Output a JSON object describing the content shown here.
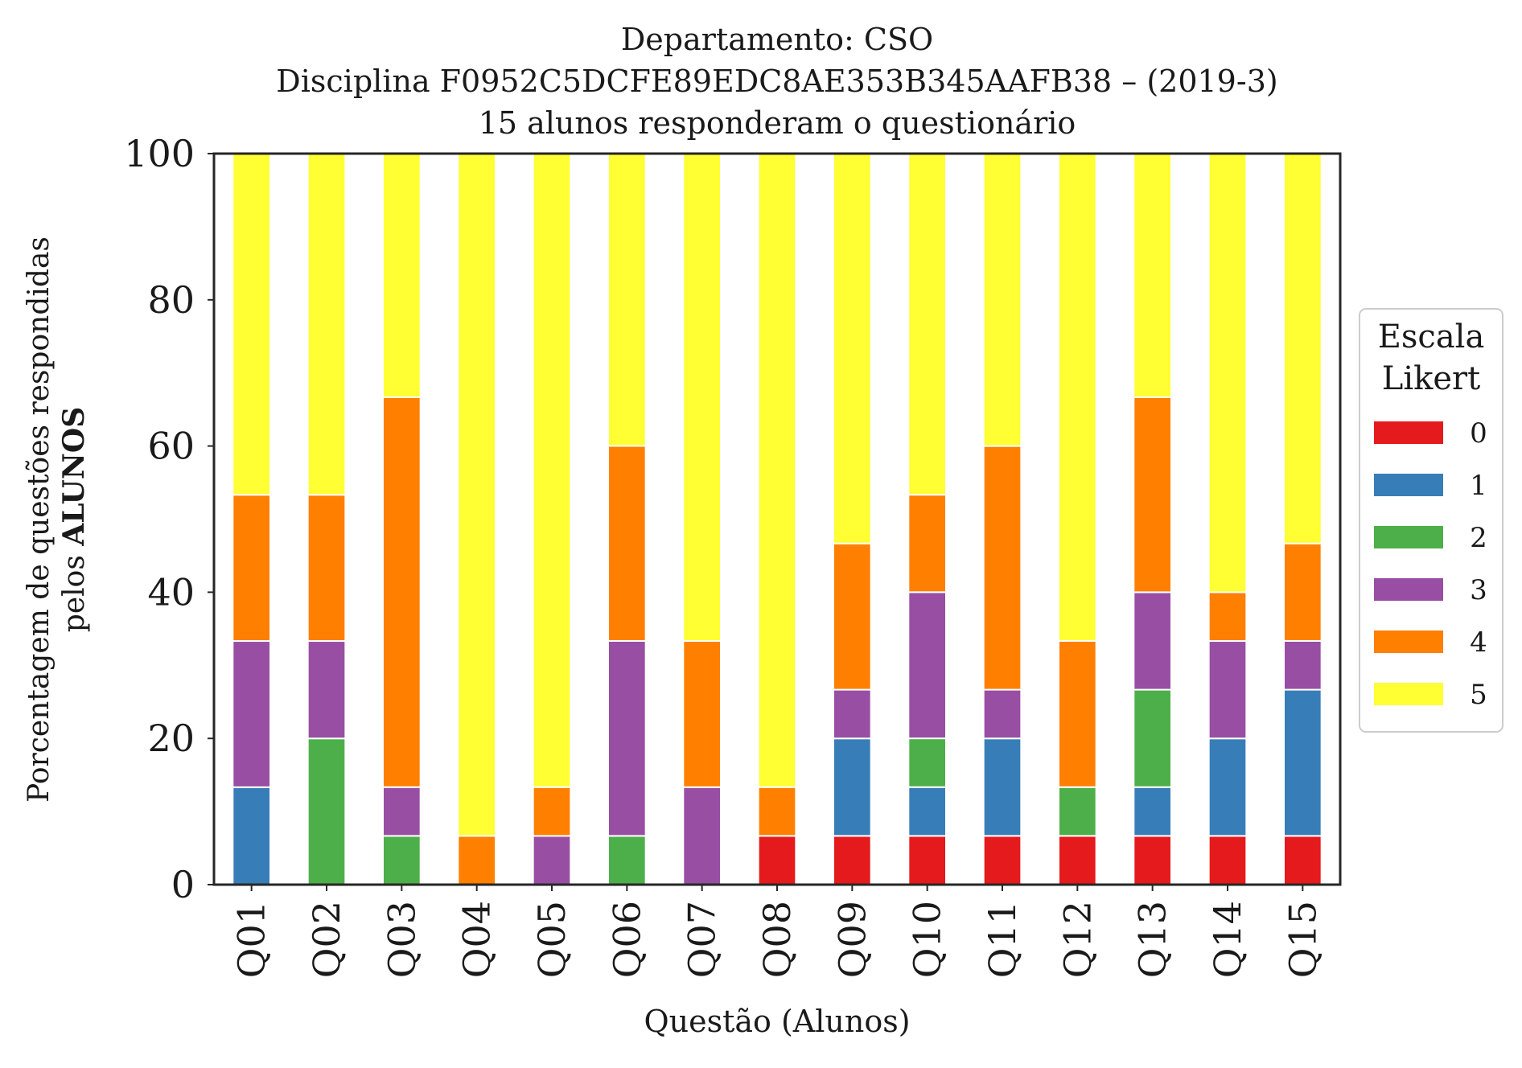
{
  "chart_data": {
    "type": "bar",
    "stacked": true,
    "title": [
      "Departamento: CSO",
      "Disciplina F0952C5DCFE89EDC8AE353B345AAFB38 – (2019-3)",
      "15 alunos responderam o questionário"
    ],
    "xlabel": "Questão (Alunos)",
    "ylabel": [
      "Porcentagem de questões respondidas",
      "pelos ",
      "ALUNOS"
    ],
    "ylim": [
      0,
      100
    ],
    "yticks": [
      "0",
      "20",
      "40",
      "60",
      "80",
      "100"
    ],
    "grid": false,
    "legend": {
      "title": [
        "Escala",
        "Likert"
      ],
      "placement": "right"
    },
    "categories": [
      "Q01",
      "Q02",
      "Q03",
      "Q04",
      "Q05",
      "Q06",
      "Q07",
      "Q08",
      "Q09",
      "Q10",
      "Q11",
      "Q12",
      "Q13",
      "Q14",
      "Q15"
    ],
    "series": [
      {
        "name": "0",
        "color": "#e41a1c",
        "values": [
          0,
          0,
          0,
          0,
          0,
          0,
          0,
          6.67,
          6.67,
          6.67,
          6.67,
          6.67,
          6.67,
          6.67,
          6.67
        ]
      },
      {
        "name": "1",
        "color": "#377eb8",
        "values": [
          13.33,
          0,
          0,
          0,
          0,
          0,
          0,
          0,
          13.33,
          6.67,
          13.33,
          0,
          6.67,
          13.33,
          20
        ]
      },
      {
        "name": "2",
        "color": "#4daf4a",
        "values": [
          0,
          20,
          6.67,
          0,
          0,
          6.67,
          0,
          0,
          0,
          6.67,
          0,
          6.67,
          13.33,
          0,
          0
        ]
      },
      {
        "name": "3",
        "color": "#984ea3",
        "values": [
          20,
          13.33,
          6.67,
          0,
          6.67,
          26.67,
          13.33,
          0,
          6.67,
          20,
          6.67,
          0,
          13.33,
          13.33,
          6.67
        ]
      },
      {
        "name": "4",
        "color": "#ff7f00",
        "values": [
          20,
          20,
          53.33,
          6.67,
          6.67,
          26.67,
          20,
          6.67,
          20,
          13.33,
          33.33,
          20,
          26.67,
          6.67,
          13.33
        ]
      },
      {
        "name": "5",
        "color": "#ffff33",
        "values": [
          46.67,
          46.67,
          33.33,
          93.33,
          86.67,
          40,
          66.67,
          86.67,
          53.33,
          46.67,
          40,
          66.67,
          33.33,
          60,
          53.33
        ]
      }
    ]
  }
}
